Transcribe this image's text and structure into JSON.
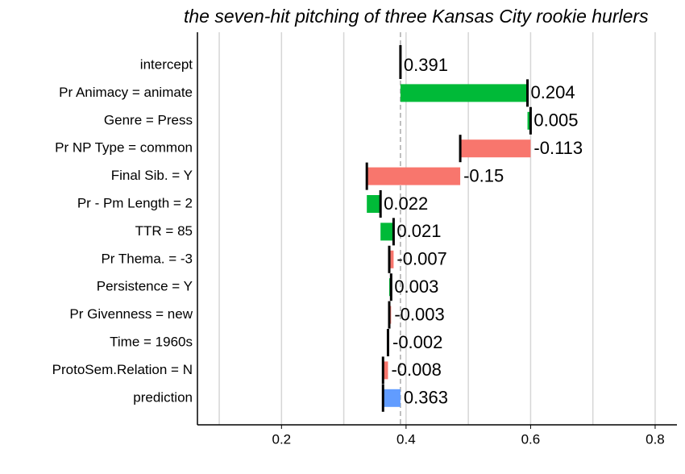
{
  "chart_data": {
    "type": "waterfall",
    "title": "the seven-hit pitching of three Kansas City rookie hurlers",
    "categories": [
      "intercept",
      "Pr Animacy = animate",
      "Genre = Press",
      "Pr NP Type = common",
      "Final Sib. = Y",
      "Pr - Pm Length = 2",
      "TTR = 85",
      "Pr Thema. = -3",
      "Persistence = Y",
      "Pr Givenness = new",
      "Time = 1960s",
      "ProtoSem.Relation = N",
      "prediction"
    ],
    "values": [
      0.391,
      0.204,
      0.005,
      -0.113,
      -0.15,
      0.022,
      0.021,
      -0.007,
      0.003,
      -0.003,
      -0.002,
      -0.008,
      0.363
    ],
    "positive_color": "#00BA38",
    "negative_color": "#F8766D",
    "prediction_color": "#619CFF",
    "xlim": [
      0.065,
      0.835
    ],
    "xticks": [
      0.2,
      0.4,
      0.6,
      0.8
    ],
    "xminorticks": [
      0.1,
      0.3,
      0.5,
      0.7
    ],
    "grid": true
  }
}
